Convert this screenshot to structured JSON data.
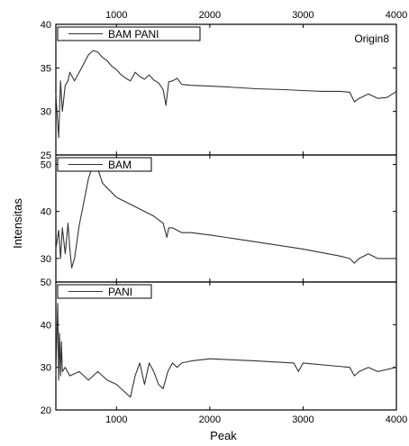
{
  "watermark": "Origin8",
  "chart_data": [
    {
      "type": "line",
      "legend": "BAM PANI",
      "legend_position": "top-left",
      "xlim": [
        350,
        4000
      ],
      "ylim": [
        25,
        40
      ],
      "yticks": [
        25,
        30,
        35,
        40
      ],
      "top_xticks": [
        1000,
        2000,
        3000,
        4000
      ],
      "series": [
        {
          "name": "BAM PANI",
          "x": [
            350,
            380,
            400,
            420,
            450,
            480,
            500,
            550,
            600,
            650,
            700,
            750,
            800,
            850,
            900,
            950,
            1000,
            1050,
            1100,
            1150,
            1200,
            1250,
            1300,
            1350,
            1400,
            1450,
            1500,
            1530,
            1560,
            1600,
            1650,
            1700,
            1800,
            2000,
            2200,
            2500,
            2800,
            3000,
            3200,
            3400,
            3500,
            3550,
            3600,
            3700,
            3800,
            3900,
            4000
          ],
          "y": [
            32,
            27,
            33.5,
            30,
            33,
            33.5,
            34.5,
            33.5,
            34.5,
            35.5,
            36.5,
            37,
            36.8,
            36.2,
            35.8,
            35.2,
            34.8,
            34.2,
            33.8,
            33.5,
            34.5,
            34,
            33.7,
            34.2,
            33.6,
            33.3,
            32.5,
            30.7,
            33.4,
            33.5,
            33.8,
            33.1,
            33,
            32.9,
            32.8,
            32.6,
            32.5,
            32.4,
            32.3,
            32.3,
            32.2,
            31.1,
            31.5,
            32,
            31.5,
            31.6,
            32.3
          ]
        }
      ]
    },
    {
      "type": "line",
      "legend": "BAM",
      "legend_position": "top-left",
      "xlim": [
        350,
        4000
      ],
      "ylim": [
        25,
        52
      ],
      "yticks": [
        30,
        40,
        50
      ],
      "series": [
        {
          "name": "BAM",
          "x": [
            350,
            380,
            400,
            420,
            450,
            480,
            500,
            520,
            550,
            600,
            650,
            700,
            750,
            800,
            850,
            900,
            1000,
            1200,
            1400,
            1500,
            1540,
            1560,
            1600,
            1700,
            1800,
            2000,
            2500,
            3000,
            3400,
            3500,
            3550,
            3600,
            3700,
            3800,
            4000
          ],
          "y": [
            32,
            36,
            30,
            36.5,
            31,
            37.5,
            32,
            28,
            30,
            37,
            42,
            47,
            50,
            49,
            46,
            45,
            43,
            41,
            39,
            37.5,
            34.5,
            36.5,
            36.5,
            35.5,
            35.5,
            35,
            33.5,
            32,
            30.5,
            30,
            29,
            30,
            31,
            30,
            30
          ]
        }
      ]
    },
    {
      "type": "line",
      "legend": "PANI",
      "legend_position": "top-left",
      "xlim": [
        350,
        4000
      ],
      "ylim": [
        20,
        50
      ],
      "yticks": [
        20,
        30,
        40,
        50
      ],
      "xticks": [
        1000,
        2000,
        3000,
        4000
      ],
      "xlabel": "Peak",
      "series": [
        {
          "name": "PANI",
          "x": [
            350,
            370,
            380,
            390,
            400,
            410,
            420,
            450,
            500,
            600,
            700,
            800,
            900,
            1000,
            1100,
            1150,
            1200,
            1250,
            1300,
            1350,
            1400,
            1450,
            1500,
            1550,
            1600,
            1650,
            1700,
            1800,
            2000,
            2500,
            2900,
            2950,
            3000,
            3500,
            3550,
            3600,
            3700,
            3800,
            4000
          ],
          "y": [
            28,
            45,
            27,
            38,
            28,
            36,
            29,
            30,
            28,
            29,
            27,
            29,
            27,
            26,
            24,
            23,
            28,
            31,
            26,
            31,
            29,
            26,
            25,
            29,
            31,
            30,
            31,
            31.5,
            32,
            31.5,
            31,
            29,
            31,
            30,
            28,
            29,
            30,
            29,
            30
          ]
        }
      ]
    }
  ],
  "ylabel": "Intensitas"
}
